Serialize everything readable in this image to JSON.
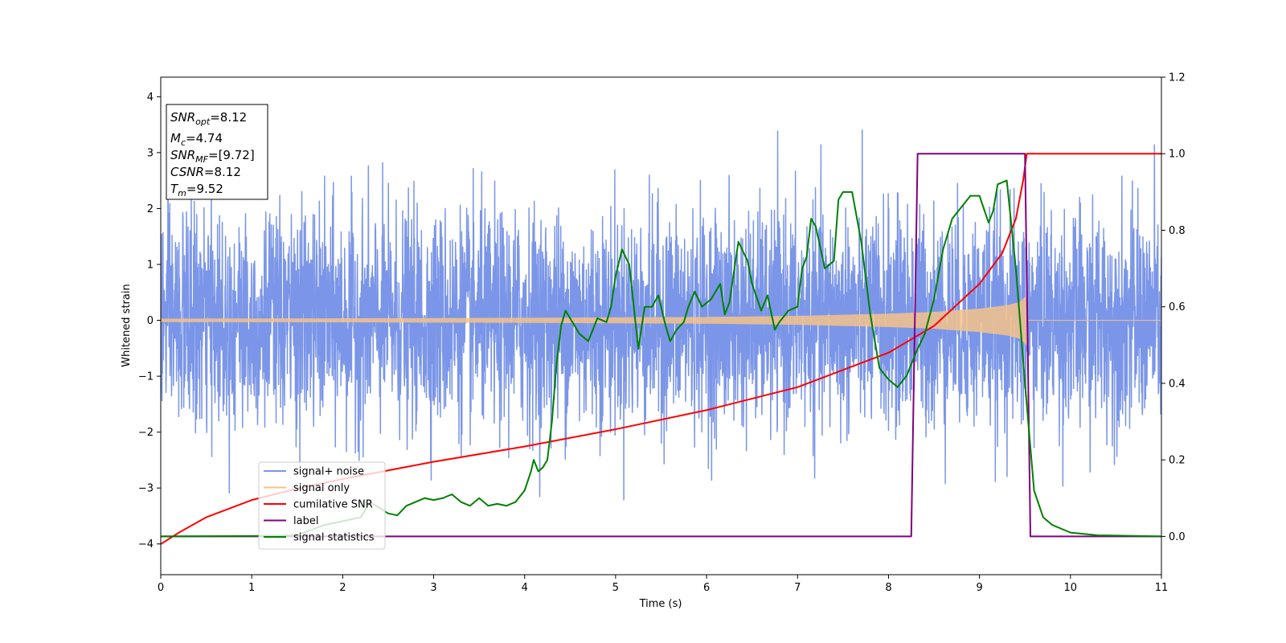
{
  "chart_data": {
    "type": "line",
    "xlabel": "Time (s)",
    "ylabel": "Whitened strain",
    "xlim": [
      0,
      11
    ],
    "ylim": [
      -4.55,
      4.35
    ],
    "y2lim": [
      -0.1,
      1.2
    ],
    "x_ticks": [
      "0",
      "1",
      "2",
      "3",
      "4",
      "5",
      "6",
      "7",
      "8",
      "9",
      "10",
      "11"
    ],
    "y_ticks": [
      "4",
      "3",
      "2",
      "1",
      "0",
      "−1",
      "−2",
      "−3",
      "−4"
    ],
    "y2_ticks": [
      "1.2",
      "1.0",
      "0.8",
      "0.6",
      "0.4",
      "0.2",
      "0.0"
    ],
    "grid": false,
    "legend_position": "lower-left",
    "info_box": [
      {
        "main": "SNR",
        "sub": "opt",
        "value": "=8.12"
      },
      {
        "main": "M",
        "sub": "c",
        "value": "=4.74"
      },
      {
        "main": "SNR",
        "sub": "MF",
        "value": "=[9.72]"
      },
      {
        "main": "CSNR",
        "sub": "",
        "value": "=8.12"
      },
      {
        "main": "T",
        "sub": "m",
        "value": "=9.52"
      }
    ],
    "series": [
      {
        "name": "signal+ noise",
        "color": "#7b96e8",
        "axis": "left",
        "kind": "noise",
        "std": 1.0,
        "range": [
          -4.15,
          3.95
        ],
        "x_range": [
          0,
          11
        ]
      },
      {
        "name": "signal only",
        "color": "#f5c28a",
        "axis": "left",
        "kind": "chirp",
        "envelope_x": [
          0,
          2,
          4,
          6,
          7,
          8,
          8.5,
          9,
          9.3,
          9.45,
          9.52
        ],
        "envelope_y": [
          0.03,
          0.035,
          0.045,
          0.06,
          0.08,
          0.12,
          0.15,
          0.21,
          0.27,
          0.33,
          0.45
        ],
        "merger_time": 9.52
      },
      {
        "name": "cumilative SNR",
        "color": "#ff0000",
        "axis": "right",
        "x": [
          0,
          0.2,
          0.5,
          1,
          1.5,
          2,
          3,
          4,
          5,
          6,
          7,
          8,
          8.5,
          9,
          9.25,
          9.4,
          9.48,
          9.52,
          11
        ],
        "y": [
          -0.02,
          0.01,
          0.05,
          0.095,
          0.125,
          0.15,
          0.195,
          0.235,
          0.28,
          0.33,
          0.39,
          0.48,
          0.55,
          0.66,
          0.74,
          0.83,
          0.93,
          1.0,
          1.0
        ]
      },
      {
        "name": "label",
        "color": "#800080",
        "axis": "right",
        "x": [
          0,
          8.25,
          8.32,
          9.5,
          9.56,
          11
        ],
        "y": [
          0,
          0,
          1,
          1,
          0,
          0
        ]
      },
      {
        "name": "signal statistics",
        "color": "#008000",
        "axis": "right",
        "x": [
          0,
          1,
          1.5,
          1.8,
          2,
          2.2,
          2.3,
          2.5,
          2.6,
          2.7,
          2.8,
          2.9,
          3.0,
          3.1,
          3.2,
          3.3,
          3.4,
          3.5,
          3.6,
          3.7,
          3.8,
          3.9,
          4.0,
          4.07,
          4.1,
          4.15,
          4.2,
          4.25,
          4.3,
          4.35,
          4.4,
          4.45,
          4.5,
          4.6,
          4.7,
          4.8,
          4.9,
          4.95,
          5.0,
          5.07,
          5.15,
          5.25,
          5.32,
          5.4,
          5.47,
          5.55,
          5.6,
          5.67,
          5.75,
          5.8,
          5.87,
          5.95,
          6.05,
          6.15,
          6.2,
          6.25,
          6.35,
          6.45,
          6.5,
          6.6,
          6.67,
          6.75,
          6.8,
          6.9,
          7.0,
          7.05,
          7.1,
          7.15,
          7.2,
          7.3,
          7.4,
          7.45,
          7.5,
          7.6,
          7.7,
          7.8,
          7.9,
          8.0,
          8.1,
          8.2,
          8.3,
          8.4,
          8.5,
          8.6,
          8.7,
          8.8,
          8.9,
          9.0,
          9.1,
          9.15,
          9.2,
          9.3,
          9.4,
          9.5,
          9.6,
          9.7,
          9.8,
          9.9,
          10.0,
          10.3,
          11
        ],
        "y": [
          0.0,
          0.001,
          0.003,
          0.03,
          0.04,
          0.05,
          0.09,
          0.06,
          0.055,
          0.08,
          0.09,
          0.1,
          0.095,
          0.1,
          0.11,
          0.09,
          0.08,
          0.1,
          0.08,
          0.085,
          0.08,
          0.09,
          0.12,
          0.17,
          0.2,
          0.17,
          0.18,
          0.2,
          0.3,
          0.45,
          0.55,
          0.59,
          0.57,
          0.53,
          0.51,
          0.57,
          0.56,
          0.6,
          0.68,
          0.75,
          0.71,
          0.49,
          0.6,
          0.6,
          0.63,
          0.55,
          0.51,
          0.54,
          0.56,
          0.6,
          0.64,
          0.6,
          0.62,
          0.66,
          0.58,
          0.61,
          0.77,
          0.72,
          0.66,
          0.59,
          0.63,
          0.54,
          0.56,
          0.59,
          0.6,
          0.7,
          0.73,
          0.83,
          0.81,
          0.7,
          0.72,
          0.88,
          0.9,
          0.9,
          0.77,
          0.58,
          0.44,
          0.41,
          0.39,
          0.42,
          0.48,
          0.53,
          0.62,
          0.75,
          0.83,
          0.86,
          0.89,
          0.89,
          0.82,
          0.85,
          0.92,
          0.93,
          0.7,
          0.4,
          0.12,
          0.05,
          0.03,
          0.02,
          0.01,
          0.003,
          0.0
        ]
      }
    ]
  }
}
